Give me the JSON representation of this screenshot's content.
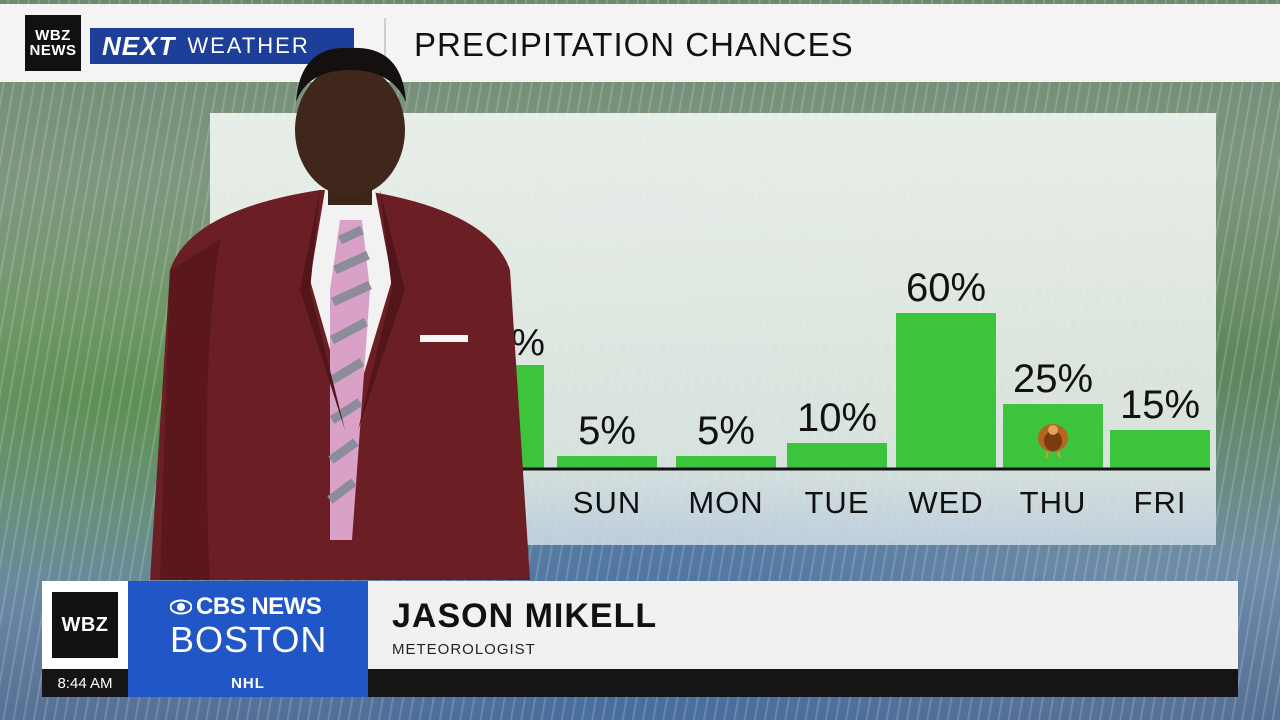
{
  "header": {
    "station_logo_line1": "WBZ",
    "station_logo_line2": "NEWS",
    "brand_next": "NEXT",
    "brand_weather": "WEATHER",
    "title": "PRECIPITATION CHANCES"
  },
  "chart_data": {
    "type": "bar",
    "categories": [
      "SUN",
      "MON",
      "TUE",
      "WED",
      "THU",
      "FRI"
    ],
    "values": [
      5,
      5,
      10,
      60,
      25,
      15
    ],
    "value_labels": [
      "5%",
      "5%",
      "10%",
      "60%",
      "25%",
      "15%"
    ],
    "partially_hidden_bar": {
      "value_label_visible": "%",
      "value": 40
    },
    "ylim": [
      0,
      100
    ],
    "bar_color": "#3cc53c",
    "icons": [
      {
        "category": "THU",
        "icon": "turkey-icon"
      }
    ]
  },
  "lower_third": {
    "logo": "WBZ",
    "network": "CBS NEWS",
    "city": "BOSTON",
    "name": "JASON MIKELL",
    "role": "METEOROLOGIST"
  },
  "ticker": {
    "time": "8:44 AM",
    "topic": "NHL"
  },
  "colors": {
    "brand_blue": "#2156c6",
    "next_weather_blue": "#1d3f9a",
    "bar_green": "#3cc53c"
  }
}
